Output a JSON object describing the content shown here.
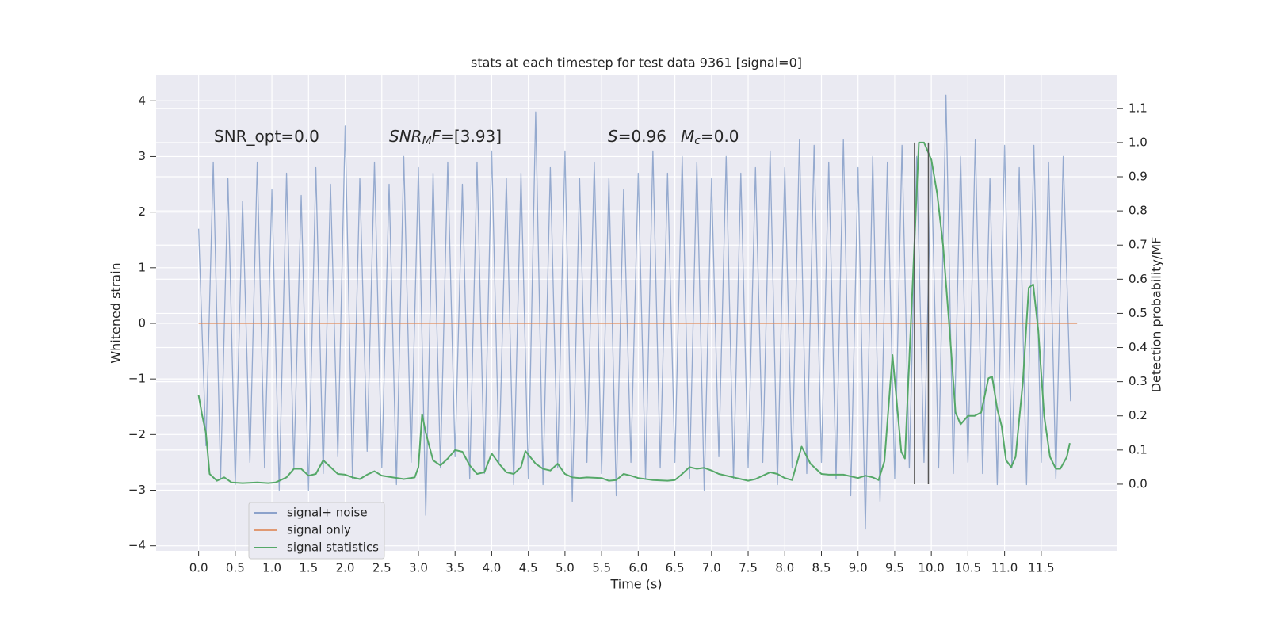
{
  "chart_data": {
    "type": "line",
    "title": "stats at each timestep for test data 9361 [signal=0]",
    "xlabel": "Time (s)",
    "ylabel": "Whitened strain",
    "y2label": "Detection probability/MF",
    "xlim": [
      -0.58,
      12.54
    ],
    "ylim": [
      -4.09,
      4.46
    ],
    "y2lim": [
      -0.195,
      1.197
    ],
    "xticks": [
      {
        "value": 0,
        "label": "0.0"
      },
      {
        "value": 0.5,
        "label": "0.5"
      },
      {
        "value": 1,
        "label": "1.0"
      },
      {
        "value": 1.5,
        "label": "1.5"
      },
      {
        "value": 2,
        "label": "2.0"
      },
      {
        "value": 2.5,
        "label": "2.5"
      },
      {
        "value": 3,
        "label": "3.0"
      },
      {
        "value": 3.5,
        "label": "3.5"
      },
      {
        "value": 4,
        "label": "4.0"
      },
      {
        "value": 4.5,
        "label": "4.5"
      },
      {
        "value": 5,
        "label": "5.0"
      },
      {
        "value": 5.5,
        "label": "5.5"
      },
      {
        "value": 6,
        "label": "6.0"
      },
      {
        "value": 6.5,
        "label": "6.5"
      },
      {
        "value": 7,
        "label": "7.0"
      },
      {
        "value": 7.5,
        "label": "7.5"
      },
      {
        "value": 8,
        "label": "8.0"
      },
      {
        "value": 8.5,
        "label": "8.5"
      },
      {
        "value": 9,
        "label": "9.0"
      },
      {
        "value": 9.5,
        "label": "9.5"
      },
      {
        "value": 10,
        "label": "10.0"
      },
      {
        "value": 10.5,
        "label": "10.5"
      },
      {
        "value": 11,
        "label": "11.0"
      },
      {
        "value": 11.5,
        "label": "11.5"
      }
    ],
    "yticks": [
      {
        "value": -4,
        "label": "−4"
      },
      {
        "value": -3,
        "label": "−3"
      },
      {
        "value": -2,
        "label": "−2"
      },
      {
        "value": -1,
        "label": "−1"
      },
      0,
      1,
      2,
      3,
      4
    ],
    "y2ticks": [
      {
        "value": 0,
        "label": "0.0"
      },
      {
        "value": 0.1,
        "label": "0.1"
      },
      {
        "value": 0.2,
        "label": "0.2"
      },
      {
        "value": 0.3,
        "label": "0.3"
      },
      {
        "value": 0.4,
        "label": "0.4"
      },
      {
        "value": 0.5,
        "label": "0.5"
      },
      {
        "value": 0.6,
        "label": "0.6"
      },
      {
        "value": 0.7,
        "label": "0.7"
      },
      {
        "value": 0.8,
        "label": "0.8"
      },
      {
        "value": 0.9,
        "label": "0.9"
      },
      {
        "value": 1,
        "label": "1.0"
      },
      {
        "value": 1.1,
        "label": "1.1"
      }
    ],
    "grid": true,
    "legend": "lower left",
    "series": [
      {
        "name": "signal+ noise",
        "color": "#4c72b0",
        "axis": "y",
        "x": [
          0.0,
          0.1,
          0.2,
          0.3,
          0.4,
          0.5,
          0.6,
          0.7,
          0.8,
          0.9,
          1.0,
          1.1,
          1.2,
          1.3,
          1.4,
          1.5,
          1.6,
          1.7,
          1.8,
          1.9,
          2.0,
          2.1,
          2.2,
          2.3,
          2.4,
          2.5,
          2.6,
          2.7,
          2.8,
          2.9,
          3.0,
          3.1,
          3.2,
          3.3,
          3.4,
          3.5,
          3.6,
          3.7,
          3.8,
          3.9,
          4.0,
          4.1,
          4.2,
          4.3,
          4.4,
          4.5,
          4.6,
          4.7,
          4.8,
          4.9,
          5.0,
          5.1,
          5.2,
          5.3,
          5.4,
          5.5,
          5.6,
          5.7,
          5.8,
          5.9,
          6.0,
          6.1,
          6.2,
          6.3,
          6.4,
          6.5,
          6.6,
          6.7,
          6.8,
          6.9,
          7.0,
          7.1,
          7.2,
          7.3,
          7.4,
          7.5,
          7.6,
          7.7,
          7.8,
          7.9,
          8.0,
          8.1,
          8.2,
          8.3,
          8.4,
          8.5,
          8.6,
          8.7,
          8.8,
          8.9,
          9.0,
          9.1,
          9.2,
          9.3,
          9.4,
          9.5,
          9.6,
          9.7,
          9.8,
          9.9,
          10.0,
          10.1,
          10.2,
          10.3,
          10.4,
          10.5,
          10.6,
          10.7,
          10.8,
          10.9,
          11.0,
          11.1,
          11.2,
          11.3,
          11.4,
          11.5,
          11.6,
          11.7,
          11.8,
          11.9
        ],
        "values": [
          1.7,
          -2.2,
          2.9,
          -2.8,
          2.6,
          -2.9,
          2.2,
          -2.5,
          2.9,
          -2.6,
          2.4,
          -3.0,
          2.7,
          -2.6,
          2.3,
          -3.0,
          2.8,
          -2.7,
          2.5,
          -2.4,
          3.55,
          -2.8,
          2.6,
          -2.3,
          2.9,
          -2.6,
          2.5,
          -2.9,
          3.0,
          -2.5,
          2.8,
          -3.45,
          2.7,
          -2.6,
          2.9,
          -2.4,
          2.5,
          -2.8,
          2.9,
          -2.7,
          3.1,
          -2.5,
          2.6,
          -2.9,
          2.7,
          -2.8,
          3.8,
          -2.9,
          2.8,
          -2.6,
          3.1,
          -3.2,
          2.6,
          -2.5,
          2.9,
          -2.7,
          2.6,
          -3.1,
          2.4,
          -2.5,
          2.7,
          -2.8,
          3.1,
          -2.6,
          2.7,
          -2.5,
          3.0,
          -2.8,
          2.9,
          -3.0,
          2.6,
          -2.4,
          3.0,
          -2.8,
          2.7,
          -2.6,
          2.8,
          -2.5,
          3.1,
          -2.9,
          2.8,
          -2.6,
          3.3,
          -2.7,
          3.2,
          -2.5,
          2.9,
          -2.8,
          3.3,
          -3.1,
          2.8,
          -3.7,
          3.0,
          -3.2,
          2.9,
          -2.8,
          3.2,
          -2.6,
          3.0,
          -2.5,
          2.9,
          -2.6,
          4.1,
          -2.7,
          3.0,
          -2.5,
          3.3,
          -2.7,
          2.6,
          -2.9,
          3.2,
          -2.6,
          2.8,
          -2.9,
          3.2,
          -2.5,
          2.9,
          -2.8,
          3.0,
          -1.4
        ]
      },
      {
        "name": "signal only",
        "color": "#dd8452",
        "axis": "y",
        "x": [
          0.0,
          11.99
        ],
        "values": [
          0,
          0
        ]
      },
      {
        "name": "signal statistics",
        "color": "#55a868",
        "axis": "y2",
        "x": [
          0.0,
          0.05,
          0.1,
          0.15,
          0.25,
          0.35,
          0.45,
          0.6,
          0.8,
          0.95,
          1.05,
          1.2,
          1.3,
          1.4,
          1.5,
          1.6,
          1.7,
          1.8,
          1.9,
          2.0,
          2.1,
          2.2,
          2.3,
          2.4,
          2.5,
          2.65,
          2.8,
          2.95,
          3.0,
          3.05,
          3.1,
          3.2,
          3.3,
          3.4,
          3.5,
          3.6,
          3.7,
          3.8,
          3.9,
          4.0,
          4.1,
          4.2,
          4.3,
          4.4,
          4.46,
          4.6,
          4.7,
          4.8,
          4.9,
          5.0,
          5.1,
          5.2,
          5.3,
          5.5,
          5.6,
          5.7,
          5.8,
          5.9,
          6.0,
          6.2,
          6.4,
          6.5,
          6.6,
          6.7,
          6.8,
          6.9,
          7.0,
          7.1,
          7.3,
          7.5,
          7.6,
          7.7,
          7.8,
          7.9,
          8.0,
          8.1,
          8.23,
          8.35,
          8.5,
          8.6,
          8.8,
          9.0,
          9.1,
          9.2,
          9.28,
          9.36,
          9.47,
          9.59,
          9.64,
          9.83,
          9.9,
          10.0,
          10.08,
          10.16,
          10.25,
          10.33,
          10.4,
          10.5,
          10.59,
          10.68,
          10.78,
          10.83,
          10.9,
          10.96,
          11.02,
          11.09,
          11.15,
          11.25,
          11.33,
          11.39,
          11.46,
          11.54,
          11.62,
          11.7,
          11.76,
          11.85,
          11.89
        ],
        "values": [
          0.26,
          0.2,
          0.15,
          0.03,
          0.01,
          0.02,
          0.005,
          0.003,
          0.005,
          0.003,
          0.005,
          0.02,
          0.045,
          0.045,
          0.025,
          0.03,
          0.07,
          0.05,
          0.03,
          0.028,
          0.02,
          0.015,
          0.028,
          0.038,
          0.025,
          0.02,
          0.015,
          0.02,
          0.05,
          0.205,
          0.15,
          0.07,
          0.055,
          0.075,
          0.1,
          0.095,
          0.055,
          0.03,
          0.035,
          0.09,
          0.06,
          0.035,
          0.03,
          0.05,
          0.097,
          0.06,
          0.045,
          0.04,
          0.06,
          0.03,
          0.02,
          0.018,
          0.02,
          0.018,
          0.01,
          0.012,
          0.03,
          0.025,
          0.018,
          0.012,
          0.01,
          0.012,
          0.03,
          0.05,
          0.045,
          0.048,
          0.04,
          0.03,
          0.02,
          0.01,
          0.015,
          0.025,
          0.035,
          0.03,
          0.018,
          0.012,
          0.11,
          0.06,
          0.03,
          0.028,
          0.028,
          0.018,
          0.025,
          0.02,
          0.012,
          0.067,
          0.378,
          0.095,
          0.075,
          1.0,
          1.0,
          0.95,
          0.85,
          0.7,
          0.45,
          0.21,
          0.175,
          0.2,
          0.2,
          0.21,
          0.31,
          0.315,
          0.22,
          0.17,
          0.07,
          0.05,
          0.08,
          0.3,
          0.575,
          0.585,
          0.45,
          0.2,
          0.08,
          0.045,
          0.045,
          0.08,
          0.12
        ]
      }
    ],
    "vlines": {
      "x": [
        9.77,
        9.96
      ],
      "ymin": 0,
      "ymax": 1,
      "axis": "y2",
      "color": "#555555"
    },
    "annotations": [
      {
        "parts": [
          {
            "text": "SNR_opt=0.0",
            "style": "normal"
          }
        ]
      },
      {
        "parts": [
          {
            "text": "SNR",
            "style": "italic"
          },
          {
            "text": "M",
            "style": "italic-sub"
          },
          {
            "text": "F",
            "style": "italic"
          },
          {
            "text": "=[3.93]",
            "style": "normal"
          }
        ]
      },
      {
        "parts": [
          {
            "text": "S",
            "style": "italic"
          },
          {
            "text": "=0.96",
            "style": "normal"
          }
        ]
      },
      {
        "parts": [
          {
            "text": "M",
            "style": "italic"
          },
          {
            "text": "c",
            "style": "italic-sub"
          },
          {
            "text": "=0.0",
            "style": "normal"
          }
        ]
      }
    ]
  }
}
